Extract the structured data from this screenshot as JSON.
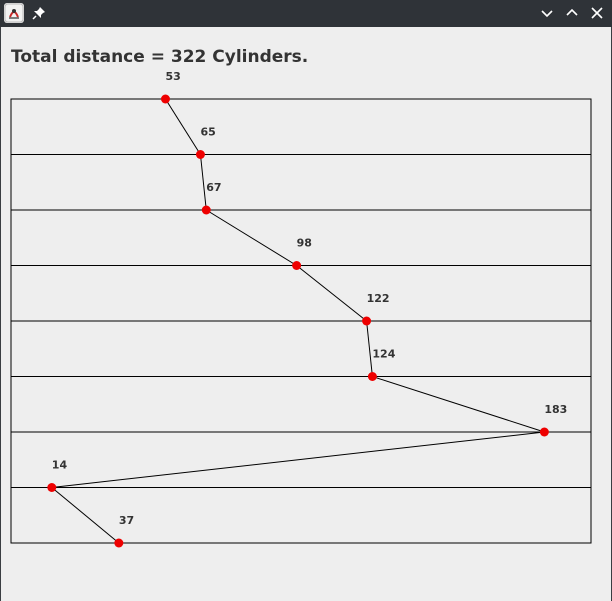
{
  "window": {
    "title_icons": [
      "java-app-icon",
      "pin-icon"
    ],
    "controls": [
      "minimize-icon",
      "maximize-icon",
      "close-icon"
    ]
  },
  "header": {
    "total_text": "Total distance = 322 Cylinders."
  },
  "chart_data": {
    "type": "line",
    "requests": [
      53,
      65,
      67,
      98,
      122,
      124,
      183,
      14,
      37
    ],
    "x_range": [
      0,
      199
    ],
    "grid": true,
    "line_color": "#000000",
    "marker_color": "#ee0000"
  }
}
